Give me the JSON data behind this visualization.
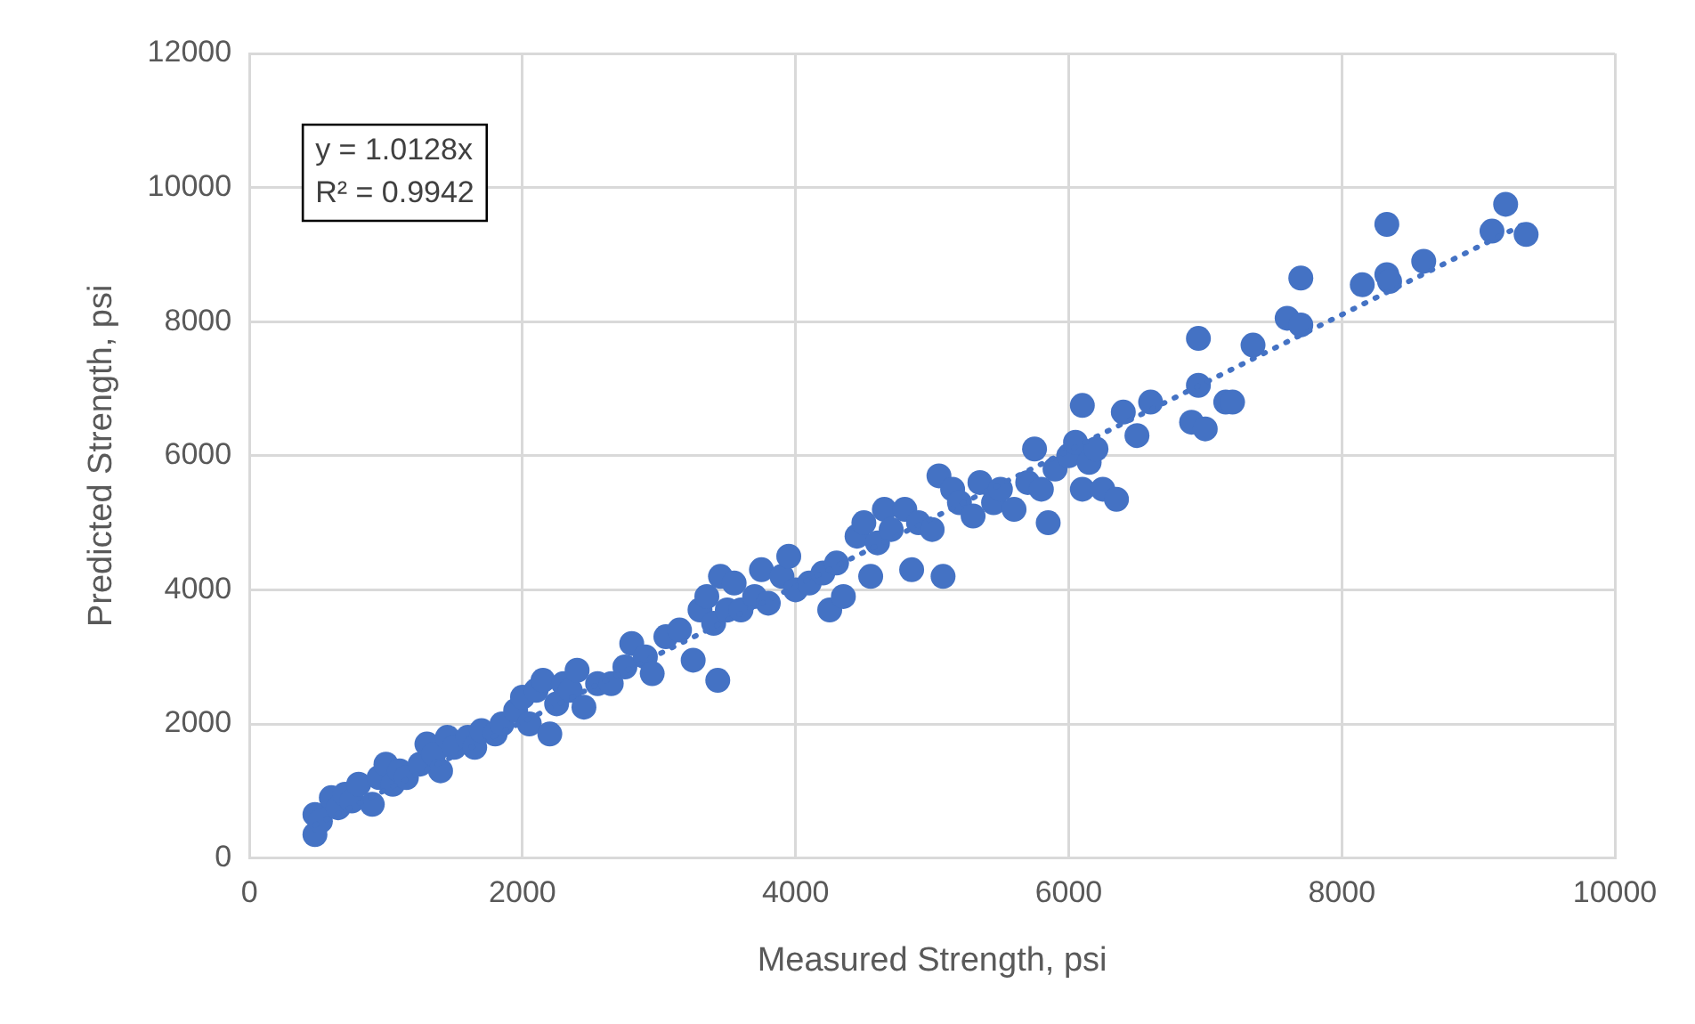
{
  "chart_data": {
    "type": "scatter",
    "xlabel": "Measured Strength, psi",
    "ylabel": "Predicted Strength, psi",
    "xlim": [
      0,
      10000
    ],
    "xticks": [
      0,
      2000,
      4000,
      6000,
      8000,
      10000
    ],
    "ylim": [
      0,
      12000
    ],
    "yticks": [
      0,
      2000,
      4000,
      6000,
      8000,
      10000,
      12000
    ],
    "grid": true,
    "legend": false,
    "marker": "circle",
    "annotations": [
      "y = 1.0128x",
      "R² = 0.9942"
    ],
    "series": [
      {
        "color": "#4472c4",
        "x": [
          480,
          480,
          520,
          600,
          650,
          700,
          750,
          800,
          900,
          950,
          1000,
          1050,
          1100,
          1150,
          1250,
          1300,
          1350,
          1400,
          1450,
          1500,
          1600,
          1650,
          1700,
          1800,
          1850,
          1950,
          2000,
          2050,
          2100,
          2150,
          2200,
          2250,
          2300,
          2350,
          2400,
          2450,
          2550,
          2650,
          2750,
          2800,
          2900,
          2950,
          3050,
          3150,
          3250,
          3300,
          3350,
          3400,
          3430,
          3450,
          3500,
          3550,
          3600,
          3700,
          3750,
          3800,
          3900,
          3950,
          4000,
          4100,
          4200,
          4250,
          4300,
          4350,
          4450,
          4500,
          4550,
          4600,
          4650,
          4700,
          4800,
          4850,
          4900,
          5000,
          5050,
          5080,
          5150,
          5200,
          5300,
          5350,
          5450,
          5500,
          5600,
          5700,
          5750,
          5800,
          5850,
          5900,
          6000,
          6050,
          6100,
          6100,
          6150,
          6200,
          6250,
          6350,
          6400,
          6500,
          6600,
          6900,
          6950,
          6950,
          7000,
          7150,
          7200,
          7350,
          7600,
          7700,
          7700,
          8150,
          8330,
          8330,
          8350,
          8600,
          9100,
          9200,
          9350
        ],
        "values": [
          350,
          650,
          550,
          900,
          750,
          950,
          850,
          1100,
          800,
          1200,
          1400,
          1100,
          1300,
          1200,
          1400,
          1700,
          1550,
          1300,
          1800,
          1650,
          1800,
          1650,
          1900,
          1850,
          2000,
          2200,
          2400,
          2000,
          2500,
          2650,
          1850,
          2300,
          2600,
          2500,
          2800,
          2250,
          2600,
          2600,
          2850,
          3200,
          3000,
          2750,
          3300,
          3400,
          2950,
          3700,
          3900,
          3500,
          2650,
          4200,
          3700,
          4100,
          3700,
          3900,
          4300,
          3800,
          4200,
          4500,
          4000,
          4100,
          4250,
          3700,
          4400,
          3900,
          4800,
          5000,
          4200,
          4700,
          5200,
          4900,
          5200,
          4300,
          5000,
          4900,
          5700,
          4200,
          5500,
          5300,
          5100,
          5600,
          5300,
          5500,
          5200,
          5600,
          6100,
          5500,
          5000,
          5800,
          6000,
          6200,
          5500,
          6750,
          5900,
          6100,
          5500,
          5350,
          6650,
          6300,
          6800,
          6500,
          7750,
          7050,
          6400,
          6800,
          6800,
          7650,
          8050,
          8650,
          7950,
          8550,
          9450,
          8700,
          8600,
          8900,
          9350,
          9750,
          9300
        ]
      },
      {
        "type": "line",
        "line_style": "dotted",
        "marker": "none",
        "color": "#4472c4",
        "x": [
          480,
          9350
        ],
        "values": [
          490,
          9470
        ]
      }
    ]
  }
}
